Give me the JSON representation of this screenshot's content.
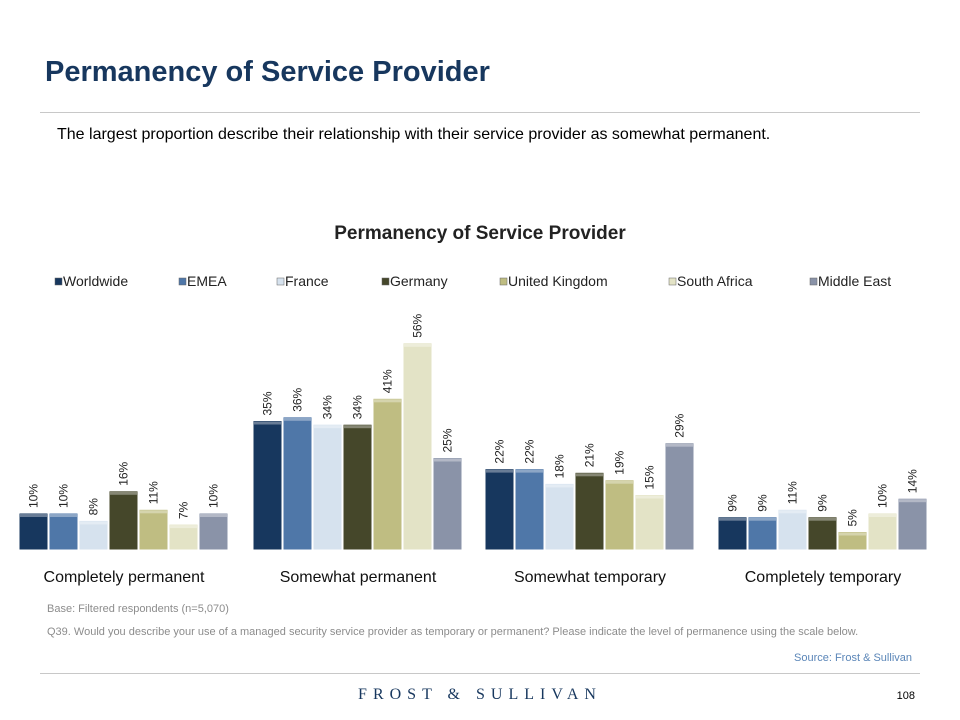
{
  "page": {
    "title": "Permanency of Service Provider",
    "subtitle": "The largest proportion describe their relationship with their service provider as somewhat permanent.",
    "base_note": "Base: Filtered respondents (n=5,070)",
    "question_note": "Q39. Would you describe your use of a managed security service provider as temporary or permanent? Please indicate the level of permanence using the scale below.",
    "source": "Source: Frost & Sullivan",
    "logo_text": "FROST & SULLIVAN",
    "page_number": "108"
  },
  "chart_data": {
    "type": "bar",
    "title": "Permanency of Service Provider",
    "legend_position": "top",
    "ylim": [
      0,
      60
    ],
    "grid": false,
    "categories": [
      "Completely permanent",
      "Somewhat permanent",
      "Somewhat temporary",
      "Completely temporary"
    ],
    "series": [
      {
        "name": "Worldwide",
        "color": "#17375e",
        "values": [
          10,
          35,
          22,
          9
        ]
      },
      {
        "name": "EMEA",
        "color": "#4f77a8",
        "values": [
          10,
          36,
          22,
          9
        ]
      },
      {
        "name": "France",
        "color": "#d6e2ee",
        "values": [
          8,
          34,
          18,
          11
        ]
      },
      {
        "name": "Germany",
        "color": "#45472a",
        "values": [
          16,
          34,
          21,
          9
        ]
      },
      {
        "name": "United Kingdom",
        "color": "#bfbd82",
        "values": [
          11,
          41,
          19,
          5
        ]
      },
      {
        "name": "South Africa",
        "color": "#e3e3c6",
        "values": [
          7,
          56,
          15,
          10
        ]
      },
      {
        "name": "Middle East",
        "color": "#8a93a8",
        "values": [
          10,
          25,
          29,
          14
        ]
      }
    ]
  }
}
